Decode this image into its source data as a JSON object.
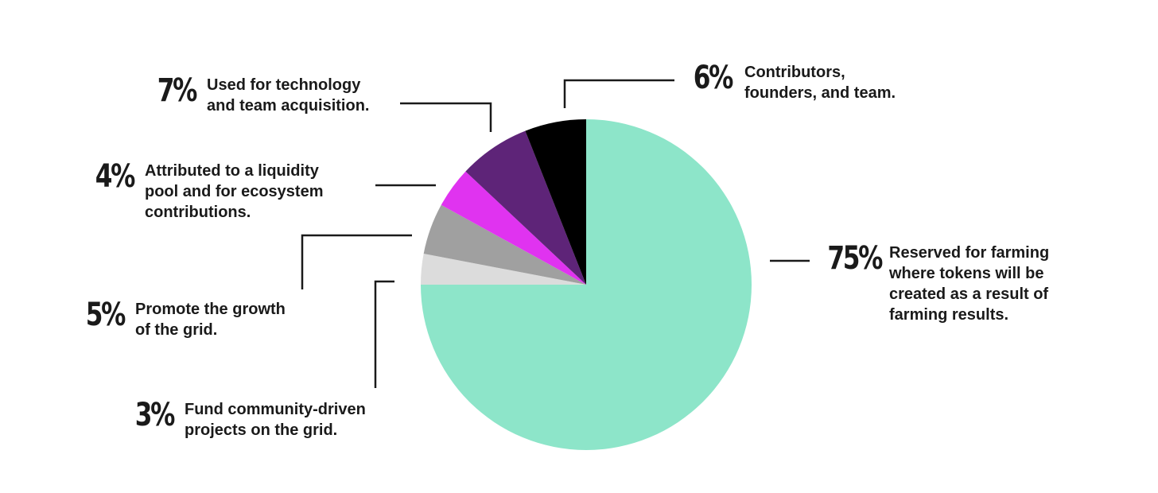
{
  "chart_data": {
    "type": "pie",
    "start_angle": "12 o'clock",
    "direction": "clockwise",
    "slices": [
      {
        "label": "75%",
        "value": 75,
        "description": "Reserved for farming\nwhere tokens will be\ncreated as a result of\nfarming results.",
        "color": "#8de5c9"
      },
      {
        "label": "3%",
        "value": 3,
        "description": "Fund community-driven\nprojects on the grid.",
        "color": "#dcdcdc"
      },
      {
        "label": "5%",
        "value": 5,
        "description": "Promote the growth\nof the grid.",
        "color": "#a0a0a0"
      },
      {
        "label": "4%",
        "value": 4,
        "description": "Attributed to a liquidity\npool and for ecosystem\ncontributions.",
        "color": "#e033f0"
      },
      {
        "label": "7%",
        "value": 7,
        "description": "Used for technology\nand team acquisition.",
        "color": "#5e2478"
      },
      {
        "label": "6%",
        "value": 6,
        "description": "Contributors,\nfounders, and team.",
        "color": "#000000"
      }
    ]
  }
}
